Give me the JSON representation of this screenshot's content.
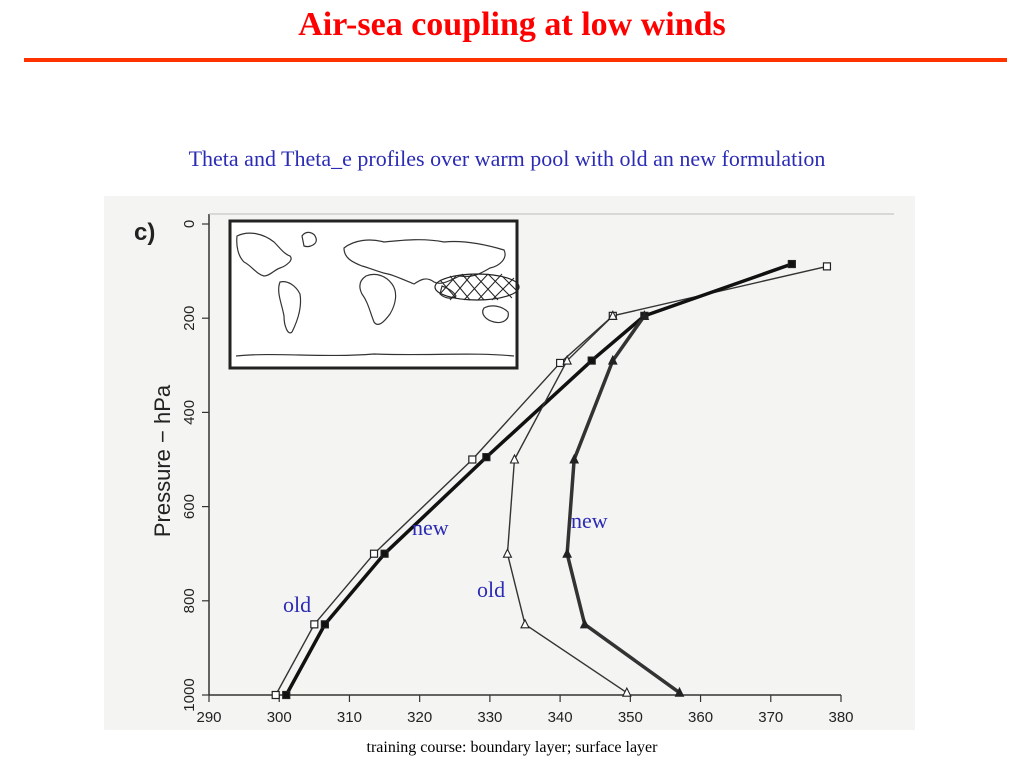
{
  "slide": {
    "title": "Air-sea coupling at low winds",
    "subtitle": "Theta and Theta_e profiles over warm pool with old an new formulation",
    "footer": "training course: boundary layer; surface layer",
    "accent_color": "#ff0000",
    "label_color": "#2b2bb5"
  },
  "figure": {
    "panel_label": "c)",
    "inset_map": {
      "description_icon": "world-map-icon",
      "hatched_region": "warm-pool"
    }
  },
  "annotations": {
    "left_old": "old",
    "left_new": "new",
    "right_old": "old",
    "right_new": "new"
  },
  "chart_data": {
    "type": "line",
    "ylabel": "Pressure − hPa",
    "xlabel": "",
    "xlim": [
      290,
      380
    ],
    "ylim": [
      1000,
      0
    ],
    "y_inverted": true,
    "xticks": [
      290,
      300,
      310,
      320,
      330,
      340,
      350,
      360,
      370,
      380
    ],
    "yticks": [
      0,
      200,
      400,
      600,
      800,
      1000
    ],
    "grid": false,
    "series": [
      {
        "marker": "open-square",
        "line": "thin",
        "color": "#333333",
        "points": [
          [
            299.5,
            1000
          ],
          [
            305,
            850
          ],
          [
            313.5,
            700
          ],
          [
            327.5,
            500
          ],
          [
            340,
            295
          ],
          [
            347.5,
            195
          ],
          [
            378,
            90
          ]
        ]
      },
      {
        "marker": "filled-square",
        "line": "thick",
        "color": "#111111",
        "points": [
          [
            301,
            1000
          ],
          [
            306.5,
            850
          ],
          [
            315,
            700
          ],
          [
            329.5,
            495
          ],
          [
            344.5,
            290
          ],
          [
            352,
            195
          ],
          [
            373,
            85
          ]
        ]
      },
      {
        "marker": "open-triangle",
        "line": "thin",
        "color": "#333333",
        "points": [
          [
            349.5,
            995
          ],
          [
            335,
            850
          ],
          [
            332.5,
            700
          ],
          [
            333.5,
            500
          ],
          [
            341,
            290
          ],
          [
            347.5,
            195
          ]
        ]
      },
      {
        "marker": "filled-triangle",
        "line": "thick",
        "color": "#333333",
        "points": [
          [
            357,
            995
          ],
          [
            343.5,
            850
          ],
          [
            341,
            700
          ],
          [
            342,
            500
          ],
          [
            347.5,
            290
          ],
          [
            352,
            195
          ]
        ]
      }
    ]
  }
}
